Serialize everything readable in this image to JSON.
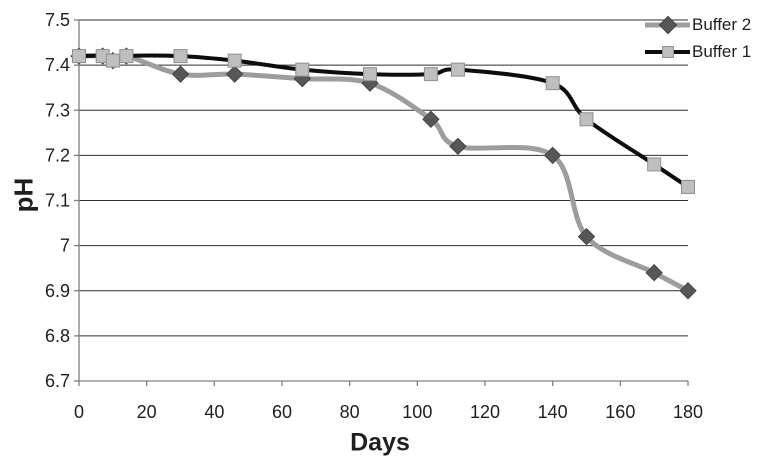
{
  "chart_data": {
    "type": "line",
    "title": "",
    "xlabel": "Days",
    "ylabel": "pH",
    "xlim": [
      0,
      180
    ],
    "ylim": [
      6.7,
      7.5
    ],
    "x_ticks": [
      0,
      20,
      40,
      60,
      80,
      100,
      120,
      140,
      160,
      180
    ],
    "y_ticks": [
      6.7,
      6.8,
      6.9,
      7,
      7.1,
      7.2,
      7.3,
      7.4,
      7.5
    ],
    "grid": "horizontal-only",
    "smooth_lines": true,
    "legend_position": "top-right",
    "x": [
      0,
      7,
      10,
      14,
      30,
      46,
      66,
      86,
      104,
      112,
      140,
      150,
      170,
      180
    ],
    "series": [
      {
        "name": "Buffer 2",
        "values": [
          7.42,
          7.42,
          7.41,
          7.42,
          7.38,
          7.38,
          7.37,
          7.36,
          7.28,
          7.22,
          7.2,
          7.02,
          6.94,
          6.9
        ],
        "line_color": "#9d9d9d",
        "line_width": 5,
        "marker": "diamond",
        "marker_color": "#575757",
        "marker_edge": "#454545"
      },
      {
        "name": "Buffer 1",
        "values": [
          7.42,
          7.42,
          7.41,
          7.42,
          7.42,
          7.41,
          7.39,
          7.38,
          7.38,
          7.39,
          7.36,
          7.28,
          7.18,
          7.13
        ],
        "line_color": "#0d0d0d",
        "line_width": 4,
        "marker": "square",
        "marker_color": "#bfbfbf",
        "marker_edge": "#8f8f8f"
      }
    ]
  },
  "colors": {
    "background": "#ffffff",
    "gridline": "#2e2e2e",
    "axis": "#7f7f7f",
    "tick": "#7f7f7f",
    "text": "#1f1f1f"
  }
}
